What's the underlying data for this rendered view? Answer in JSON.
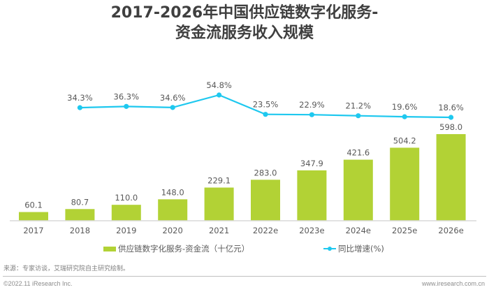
{
  "title_line1": "2017-2026年中国供应链数字化服务-",
  "title_line2": "资金流服务收入规模",
  "chart_data": {
    "type": "bar+line",
    "title": "2017-2026年中国供应链数字化服务-资金流服务收入规模",
    "categories": [
      "2017",
      "2018",
      "2019",
      "2020",
      "2021",
      "2022e",
      "2023e",
      "2024e",
      "2025e",
      "2026e"
    ],
    "series": [
      {
        "name": "供应链数字化服务-资金流（十亿元）",
        "type": "bar",
        "axis": "left",
        "values": [
          60.1,
          80.7,
          110.0,
          148.0,
          229.1,
          283.0,
          347.9,
          421.6,
          504.2,
          598.0
        ],
        "labels": [
          "60.1",
          "80.7",
          "110.0",
          "148.0",
          "229.1",
          "283.0",
          "347.9",
          "421.6",
          "504.2",
          "598.0"
        ],
        "color": "#b2d235"
      },
      {
        "name": "同比增速(%)",
        "type": "line",
        "axis": "right",
        "values": [
          null,
          34.3,
          36.3,
          34.6,
          54.8,
          23.5,
          22.9,
          21.2,
          19.6,
          18.6
        ],
        "labels": [
          "",
          "34.3%",
          "36.3%",
          "34.6%",
          "54.8%",
          "23.5%",
          "22.9%",
          "21.2%",
          "19.6%",
          "18.6%"
        ],
        "color": "#1ec8ef"
      }
    ],
    "xlabel": "",
    "ylabel": "",
    "ylim": [
      0,
      598.0
    ],
    "y2lim": [
      0,
      100
    ],
    "grid": false,
    "legend_position": "bottom"
  },
  "legend": {
    "bar_label": "供应链数字化服务-资金流（十亿元）",
    "line_label": "同比增速(%)"
  },
  "footer": {
    "source": "来源：专家访谈，艾瑞研究院自主研究绘制。",
    "copyright": "©2022.11 iResearch Inc.",
    "website": "www.iresearch.com.cn"
  },
  "colors": {
    "bar": "#b2d235",
    "line": "#1ec8ef",
    "text": "#595959",
    "title": "#3f3f3f",
    "axis": "#d9d9d9"
  }
}
